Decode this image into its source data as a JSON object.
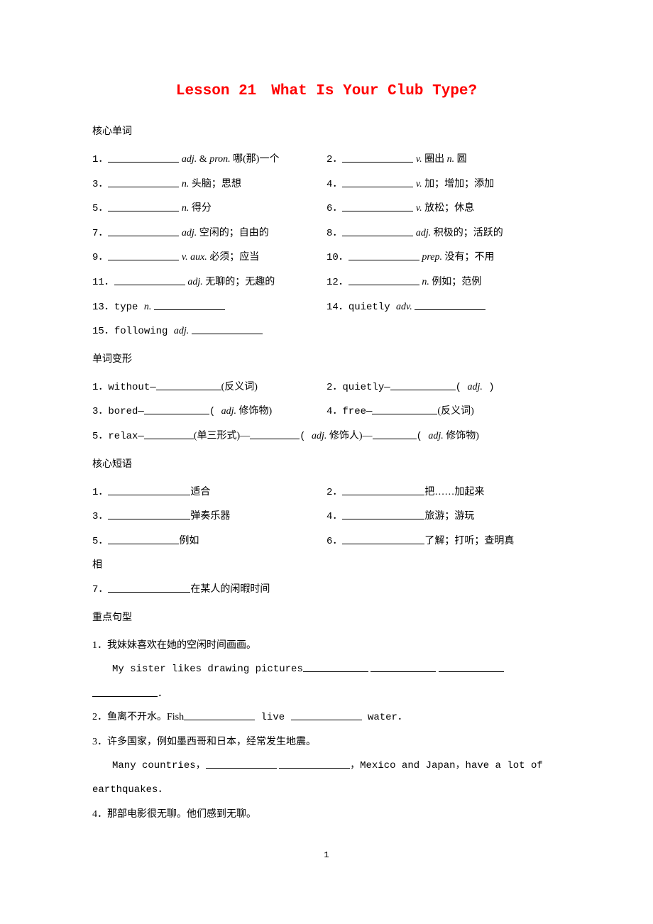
{
  "title": "Lesson 21　What Is Your Club Type?",
  "sections": {
    "vocab_head": "核心单词",
    "vocab": [
      {
        "num": "1．",
        "pos": "adj.",
        "extra": " & ",
        "extra_pos": "pron.",
        "zh": " 哪(那)一个"
      },
      {
        "num": "2．",
        "pos": "v.",
        "zh": " 圈出 ",
        "extra_pos": "n.",
        "zh2": " 圆"
      },
      {
        "num": "3．",
        "pos": "n.",
        "zh": " 头脑；思想"
      },
      {
        "num": "4．",
        "pos": "v.",
        "zh": " 加；增加；添加"
      },
      {
        "num": "5．",
        "pos": "n.",
        "zh": " 得分"
      },
      {
        "num": "6．",
        "pos": "v.",
        "zh": " 放松；休息"
      },
      {
        "num": "7．",
        "pos": "adj.",
        "zh": " 空闲的；自由的"
      },
      {
        "num": "8．",
        "pos": "adj.",
        "zh": " 积极的；活跃的"
      },
      {
        "num": "9．",
        "pos": "v.",
        "extra": " ",
        "extra_pos": "aux.",
        "zh": " 必须；应当"
      },
      {
        "num": "10．",
        "pos": "prep.",
        "zh": " 没有；不用"
      },
      {
        "num": "11．",
        "pos": "adj.",
        "zh": " 无聊的；无趣的"
      },
      {
        "num": "12．",
        "pos": "n.",
        "zh": " 例如；范例"
      }
    ],
    "vocab_rev": [
      {
        "num": "13．",
        "word": "type ",
        "pos": "n."
      },
      {
        "num": "14．",
        "word": "quietly ",
        "pos": "adv."
      },
      {
        "num": "15．",
        "word": "following ",
        "pos": "adj."
      }
    ],
    "forms_head": "单词变形",
    "forms": [
      {
        "num": "1．",
        "word": "without—",
        "suffix": "(反义词)"
      },
      {
        "num": "2．",
        "word": "quietly—",
        "suffix_pos": "( adj. )"
      },
      {
        "num": "3．",
        "word": "bored—",
        "suffix_pos": "( adj. 修饰物)"
      },
      {
        "num": "4．",
        "word": "free—",
        "suffix": "(反义词)"
      }
    ],
    "form5": {
      "num": "5．",
      "word": "relax—",
      "p1": "(单三形式)—",
      "p2_pos": "( adj. 修饰人)—",
      "p3_pos": "( adj. 修饰物)"
    },
    "phrases_head": "核心短语",
    "phrases": [
      {
        "num": "1．",
        "zh": "适合"
      },
      {
        "num": "2．",
        "zh": "把……加起来"
      },
      {
        "num": "3．",
        "zh": "弹奏乐器"
      },
      {
        "num": "4．",
        "zh": "旅游；游玩"
      },
      {
        "num": "5．",
        "zh": "例如"
      },
      {
        "num": "6．",
        "zh": "了解；打听；查明真相"
      }
    ],
    "phrase7": {
      "num": "7．",
      "zh": "在某人的闲暇时间"
    },
    "sent_head": "重点句型",
    "sent1_zh": "1．我妹妹喜欢在她的空闲时间画画。",
    "sent1_en": "My sister likes drawing pictures",
    "sent1_end": "．",
    "sent2": "2．鱼离不开水。Fish",
    "sent2_mid": " live ",
    "sent2_end": " water．",
    "sent3_zh": "3．许多国家，例如墨西哥和日本，经常发生地震。",
    "sent3_en_a": "Many countries，",
    "sent3_en_b": "，Mexico and Japan，have a lot of",
    "sent3_en_c": "earthquakes．",
    "sent4": "4．那部电影很无聊。他们感到无聊。"
  },
  "pagenum": "1"
}
